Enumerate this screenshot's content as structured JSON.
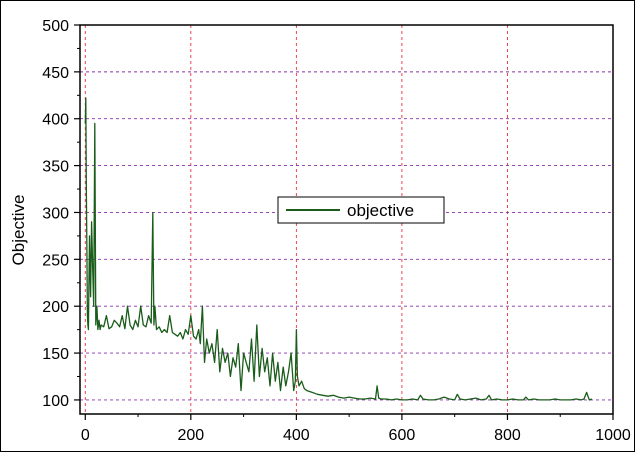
{
  "chart_data": {
    "type": "line",
    "title": "",
    "xlabel": "",
    "ylabel": "Objective",
    "xlim": [
      -10,
      1000
    ],
    "ylim": [
      85,
      500
    ],
    "x_ticks": [
      0,
      200,
      400,
      600,
      800,
      1000
    ],
    "y_ticks": [
      100,
      150,
      200,
      250,
      300,
      350,
      400,
      450,
      500
    ],
    "x_tick_labels": [
      "0",
      "200",
      "400",
      "600",
      "800",
      "1000"
    ],
    "y_tick_labels": [
      "100",
      "150",
      "200",
      "250",
      "300",
      "350",
      "400",
      "450",
      "500"
    ],
    "grid": true,
    "legend": {
      "position": "center",
      "entries": [
        "objective"
      ]
    },
    "series": [
      {
        "name": "objective",
        "color": "#1a5c1a",
        "x": [
          0,
          1,
          2,
          3,
          4,
          5,
          6,
          8,
          10,
          12,
          14,
          16,
          18,
          20,
          22,
          24,
          26,
          28,
          30,
          35,
          40,
          45,
          50,
          55,
          60,
          65,
          70,
          75,
          80,
          85,
          90,
          95,
          100,
          105,
          110,
          115,
          120,
          125,
          128,
          130,
          132,
          135,
          140,
          145,
          150,
          155,
          160,
          165,
          170,
          175,
          180,
          185,
          190,
          195,
          200,
          205,
          210,
          215,
          218,
          222,
          226,
          230,
          235,
          240,
          245,
          250,
          255,
          260,
          265,
          270,
          275,
          280,
          285,
          290,
          295,
          300,
          305,
          310,
          315,
          320,
          325,
          330,
          335,
          340,
          345,
          350,
          355,
          360,
          365,
          370,
          375,
          380,
          385,
          390,
          395,
          398,
          400,
          402,
          405,
          410,
          415,
          420,
          430,
          440,
          450,
          460,
          470,
          480,
          490,
          500,
          510,
          520,
          530,
          540,
          550,
          553,
          556,
          560,
          570,
          580,
          590,
          600,
          610,
          620,
          630,
          635,
          640,
          650,
          660,
          670,
          680,
          690,
          700,
          705,
          710,
          720,
          730,
          740,
          750,
          760,
          765,
          770,
          780,
          790,
          800,
          810,
          820,
          830,
          835,
          840,
          850,
          860,
          870,
          880,
          890,
          900,
          910,
          920,
          930,
          940,
          945,
          950,
          955,
          960
        ],
        "y": [
          395,
          422,
          330,
          260,
          190,
          180,
          175,
          275,
          210,
          290,
          240,
          200,
          395,
          180,
          200,
          175,
          185,
          175,
          180,
          178,
          190,
          176,
          178,
          185,
          182,
          178,
          190,
          176,
          200,
          180,
          175,
          185,
          178,
          200,
          180,
          178,
          190,
          182,
          300,
          180,
          200,
          175,
          178,
          172,
          175,
          172,
          190,
          172,
          170,
          168,
          172,
          165,
          175,
          170,
          190,
          168,
          165,
          175,
          160,
          200,
          140,
          165,
          150,
          160,
          140,
          175,
          130,
          155,
          140,
          150,
          125,
          145,
          135,
          160,
          110,
          150,
          140,
          130,
          165,
          120,
          180,
          125,
          155,
          130,
          145,
          115,
          150,
          120,
          140,
          110,
          135,
          115,
          130,
          150,
          110,
          120,
          175,
          125,
          115,
          120,
          112,
          110,
          108,
          106,
          105,
          104,
          105,
          103,
          102,
          103,
          102,
          101,
          101,
          102,
          101,
          115,
          102,
          101,
          101,
          100,
          101,
          100,
          100,
          101,
          100,
          105,
          101,
          100,
          100,
          101,
          103,
          101,
          100,
          106,
          101,
          100,
          101,
          102,
          100,
          101,
          105,
          100,
          101,
          100,
          100,
          101,
          100,
          100,
          103,
          100,
          101,
          100,
          100,
          100,
          101,
          100,
          100,
          100,
          101,
          100,
          101,
          108,
          100,
          101
        ]
      }
    ]
  }
}
